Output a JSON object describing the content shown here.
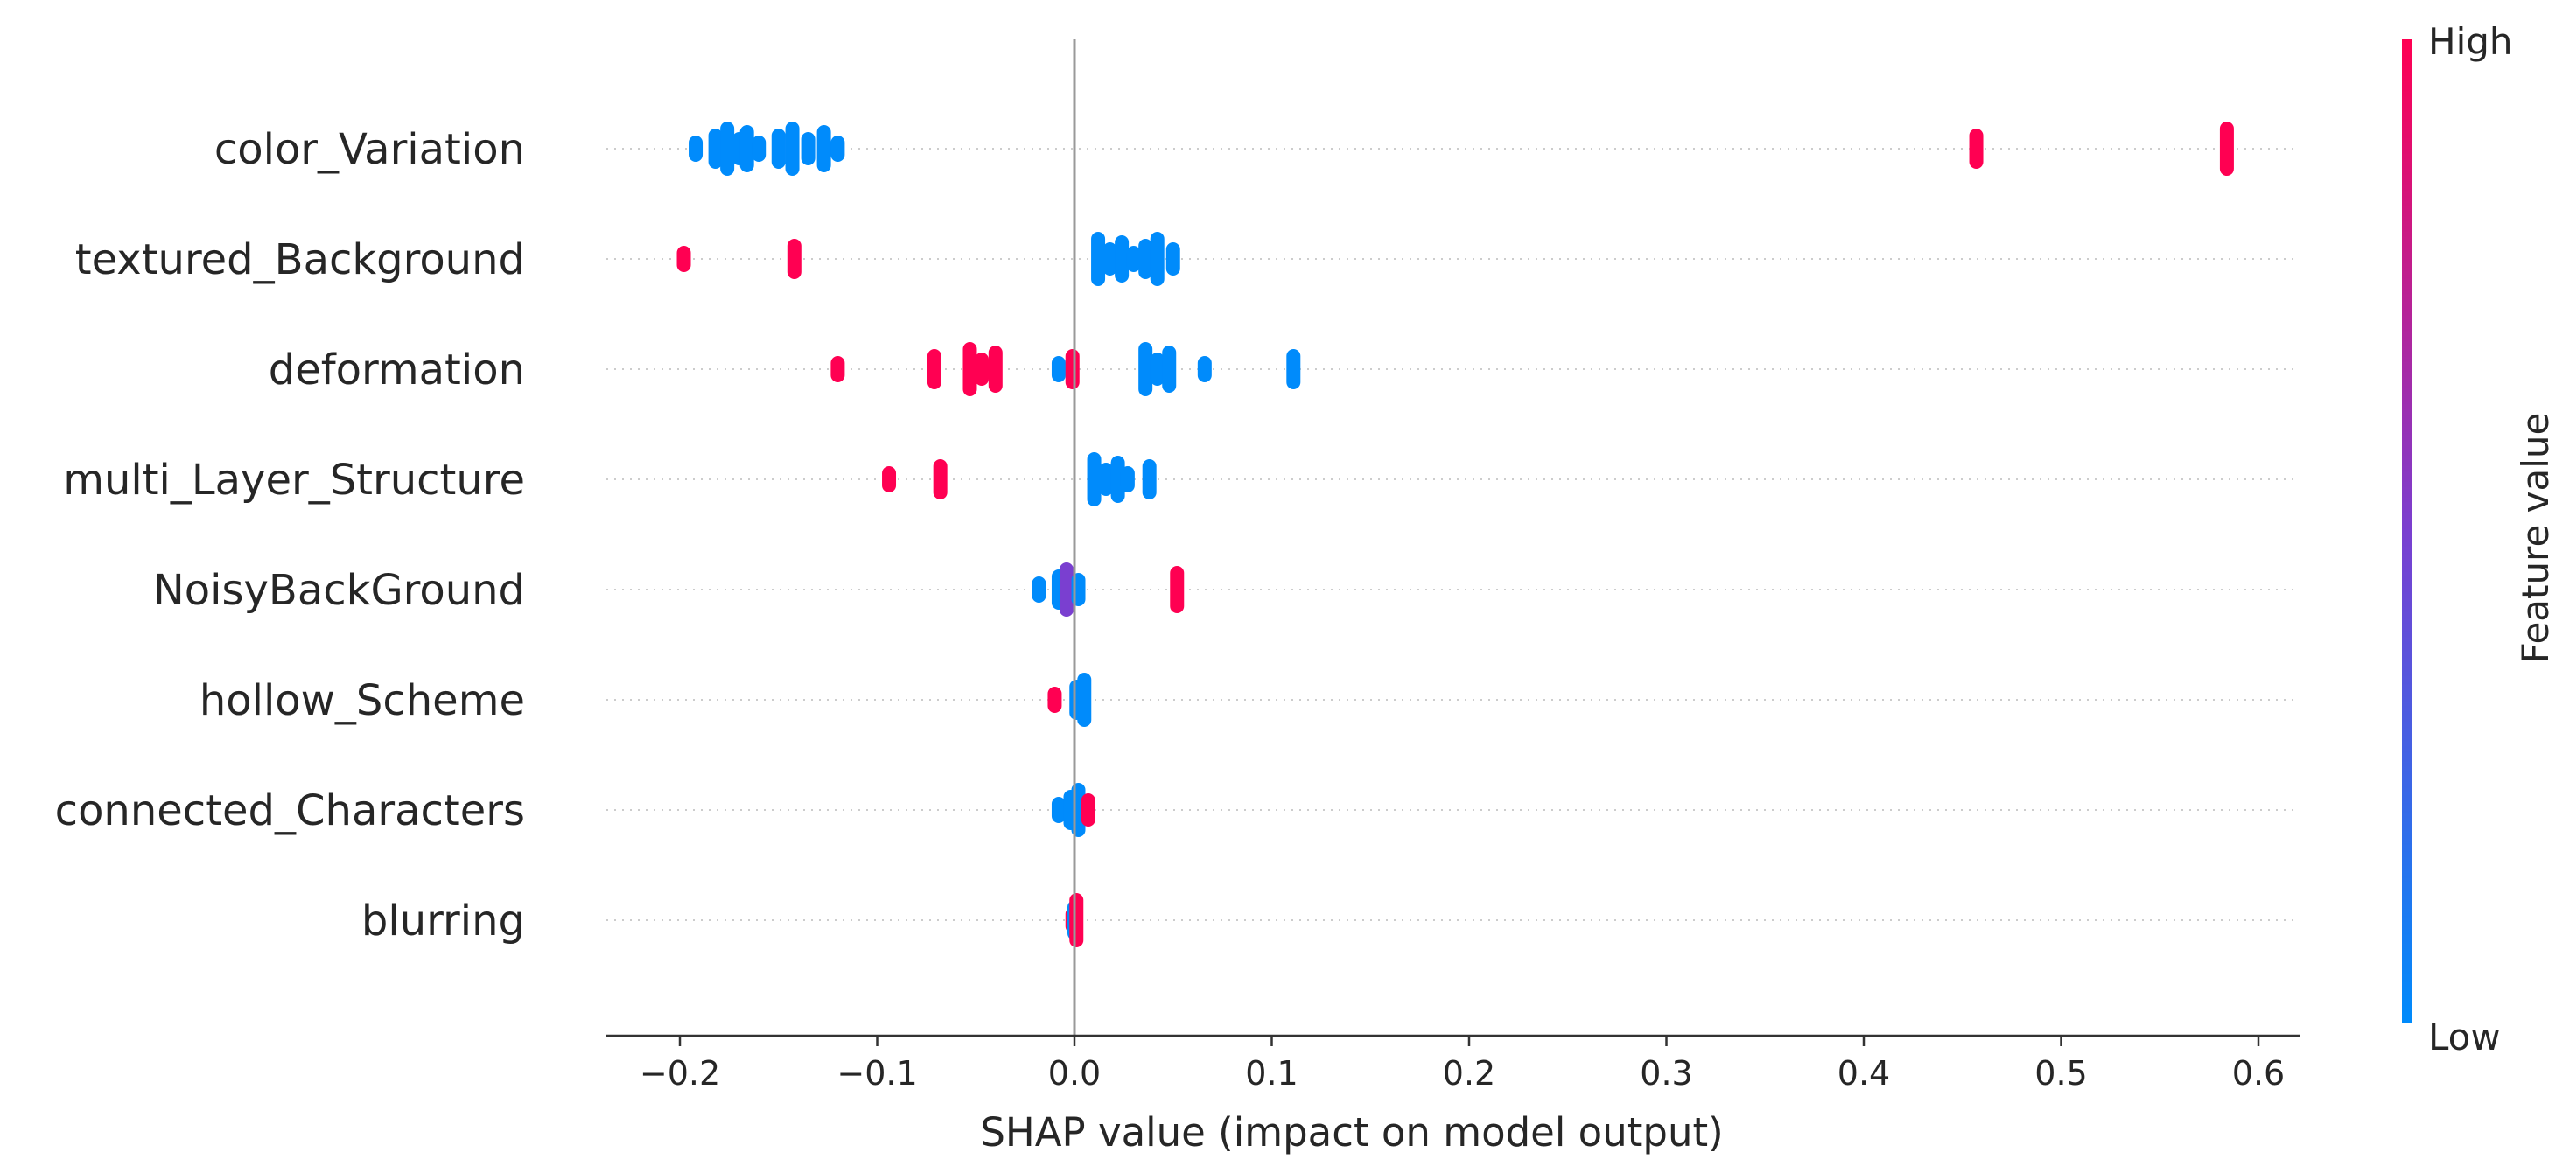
{
  "chart_data": {
    "type": "scatter",
    "subtype": "shap-beeswarm",
    "xlabel": "SHAP value (impact on model output)",
    "xlim": [
      -0.24,
      0.625
    ],
    "xticks": [
      -0.2,
      -0.1,
      0.0,
      0.1,
      0.2,
      0.3,
      0.4,
      0.5,
      0.6
    ],
    "xtick_labels": [
      "−0.2",
      "−0.1",
      "0.0",
      "0.1",
      "0.2",
      "0.3",
      "0.4",
      "0.5",
      "0.6"
    ],
    "zero_line": 0.0,
    "features": [
      {
        "name": "color_Variation",
        "points": [
          {
            "x": -0.192,
            "c": 0.0
          },
          {
            "x": -0.182,
            "c": 0.0
          },
          {
            "x": -0.176,
            "c": 0.0
          },
          {
            "x": -0.17,
            "c": 0.0
          },
          {
            "x": -0.166,
            "c": 0.0
          },
          {
            "x": -0.16,
            "c": 0.0
          },
          {
            "x": -0.15,
            "c": 0.0
          },
          {
            "x": -0.143,
            "c": 0.0
          },
          {
            "x": -0.135,
            "c": 0.0
          },
          {
            "x": -0.127,
            "c": 0.0
          },
          {
            "x": -0.12,
            "c": 0.0
          },
          {
            "x": 0.457,
            "c": 1.0
          },
          {
            "x": 0.584,
            "c": 1.0
          }
        ]
      },
      {
        "name": "textured_Background",
        "points": [
          {
            "x": -0.198,
            "c": 1.0
          },
          {
            "x": -0.142,
            "c": 1.0
          },
          {
            "x": 0.012,
            "c": 0.0
          },
          {
            "x": 0.018,
            "c": 0.0
          },
          {
            "x": 0.024,
            "c": 0.0
          },
          {
            "x": 0.03,
            "c": 0.0
          },
          {
            "x": 0.036,
            "c": 0.0
          },
          {
            "x": 0.042,
            "c": 0.0
          },
          {
            "x": 0.05,
            "c": 0.0
          }
        ]
      },
      {
        "name": "deformation",
        "points": [
          {
            "x": -0.12,
            "c": 1.0
          },
          {
            "x": -0.071,
            "c": 1.0
          },
          {
            "x": -0.053,
            "c": 1.0
          },
          {
            "x": -0.047,
            "c": 1.0
          },
          {
            "x": -0.04,
            "c": 1.0
          },
          {
            "x": -0.008,
            "c": 0.0
          },
          {
            "x": -0.001,
            "c": 1.0
          },
          {
            "x": 0.036,
            "c": 0.0
          },
          {
            "x": 0.042,
            "c": 0.0
          },
          {
            "x": 0.048,
            "c": 0.0
          },
          {
            "x": 0.066,
            "c": 0.0
          },
          {
            "x": 0.111,
            "c": 0.0
          }
        ]
      },
      {
        "name": "multi_Layer_Structure",
        "points": [
          {
            "x": -0.094,
            "c": 1.0
          },
          {
            "x": -0.068,
            "c": 1.0
          },
          {
            "x": 0.01,
            "c": 0.0
          },
          {
            "x": 0.016,
            "c": 0.0
          },
          {
            "x": 0.022,
            "c": 0.0
          },
          {
            "x": 0.027,
            "c": 0.0
          },
          {
            "x": 0.038,
            "c": 0.0
          }
        ]
      },
      {
        "name": "NoisyBackGround",
        "points": [
          {
            "x": -0.018,
            "c": 0.0
          },
          {
            "x": -0.008,
            "c": 0.0
          },
          {
            "x": -0.004,
            "c": 0.5
          },
          {
            "x": 0.002,
            "c": 0.0
          },
          {
            "x": 0.052,
            "c": 1.0
          }
        ]
      },
      {
        "name": "hollow_Scheme",
        "points": [
          {
            "x": -0.01,
            "c": 1.0
          },
          {
            "x": 0.001,
            "c": 0.0
          },
          {
            "x": 0.005,
            "c": 0.0
          }
        ]
      },
      {
        "name": "connected_Characters",
        "points": [
          {
            "x": -0.008,
            "c": 0.0
          },
          {
            "x": -0.002,
            "c": 0.0
          },
          {
            "x": 0.002,
            "c": 0.0
          },
          {
            "x": 0.007,
            "c": 1.0
          }
        ]
      },
      {
        "name": "blurring",
        "points": [
          {
            "x": -0.001,
            "c": 1.0
          },
          {
            "x": 0.0,
            "c": 0.0
          },
          {
            "x": 0.001,
            "c": 1.0
          }
        ]
      }
    ],
    "colorbar": {
      "title": "Feature value",
      "high_label": "High",
      "low_label": "Low",
      "low_color": "#008bfb",
      "mid_color": "#7a3fd0",
      "high_color": "#ff0052"
    }
  }
}
